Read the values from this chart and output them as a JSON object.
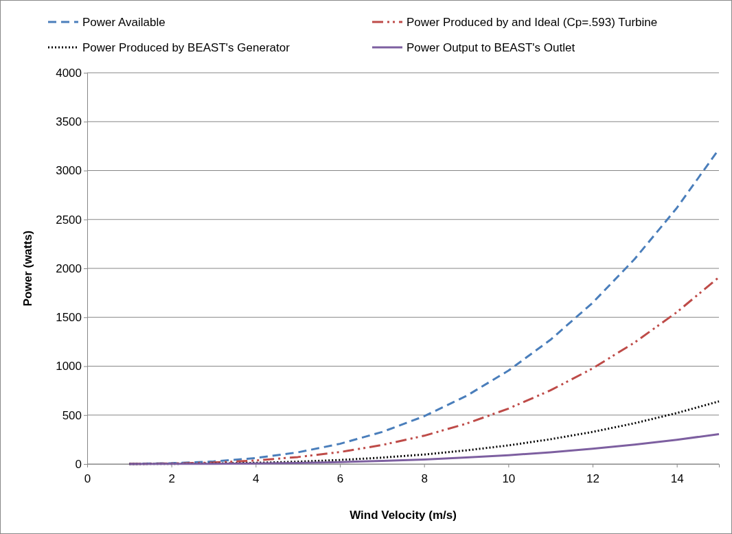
{
  "chart_data": {
    "type": "line",
    "xlabel": "Wind Velocity (m/s)",
    "ylabel": "Power (watts)",
    "x": [
      1,
      2,
      3,
      4,
      5,
      6,
      7,
      8,
      9,
      10,
      11,
      12,
      13,
      14,
      15
    ],
    "series": [
      {
        "name": "Power Available",
        "color": "#4a7ebb",
        "line_style": "dashed",
        "values": [
          1,
          8,
          26,
          61,
          119,
          206,
          327,
          488,
          695,
          954,
          1270,
          1648,
          2096,
          2618,
          3220
        ]
      },
      {
        "name": "Power Produced by and Ideal (Cp=.593) Turbine",
        "color": "#be4b48",
        "line_style": "dashdotdot",
        "values": [
          1,
          5,
          15,
          36,
          71,
          122,
          194,
          289,
          412,
          566,
          753,
          977,
          1243,
          1552,
          1910
        ]
      },
      {
        "name": "Power Produced by BEAST's Generator",
        "color": "#000000",
        "line_style": "dotted",
        "values": [
          0,
          2,
          5,
          12,
          24,
          41,
          65,
          97,
          139,
          190,
          253,
          328,
          417,
          521,
          640
        ]
      },
      {
        "name": "Power Output to BEAST's Outlet",
        "color": "#7d5fa0",
        "line_style": "solid",
        "values": [
          0,
          1,
          2,
          6,
          11,
          20,
          31,
          46,
          66,
          90,
          120,
          156,
          199,
          248,
          305
        ]
      }
    ],
    "xlim": [
      0,
      15
    ],
    "xticks": [
      0,
      2,
      4,
      6,
      8,
      10,
      12,
      14
    ],
    "ylim": [
      0,
      4000
    ],
    "yticks": [
      0,
      500,
      1000,
      1500,
      2000,
      2500,
      3000,
      3500,
      4000
    ],
    "grid": "y",
    "legend": "top",
    "marker": "none"
  }
}
